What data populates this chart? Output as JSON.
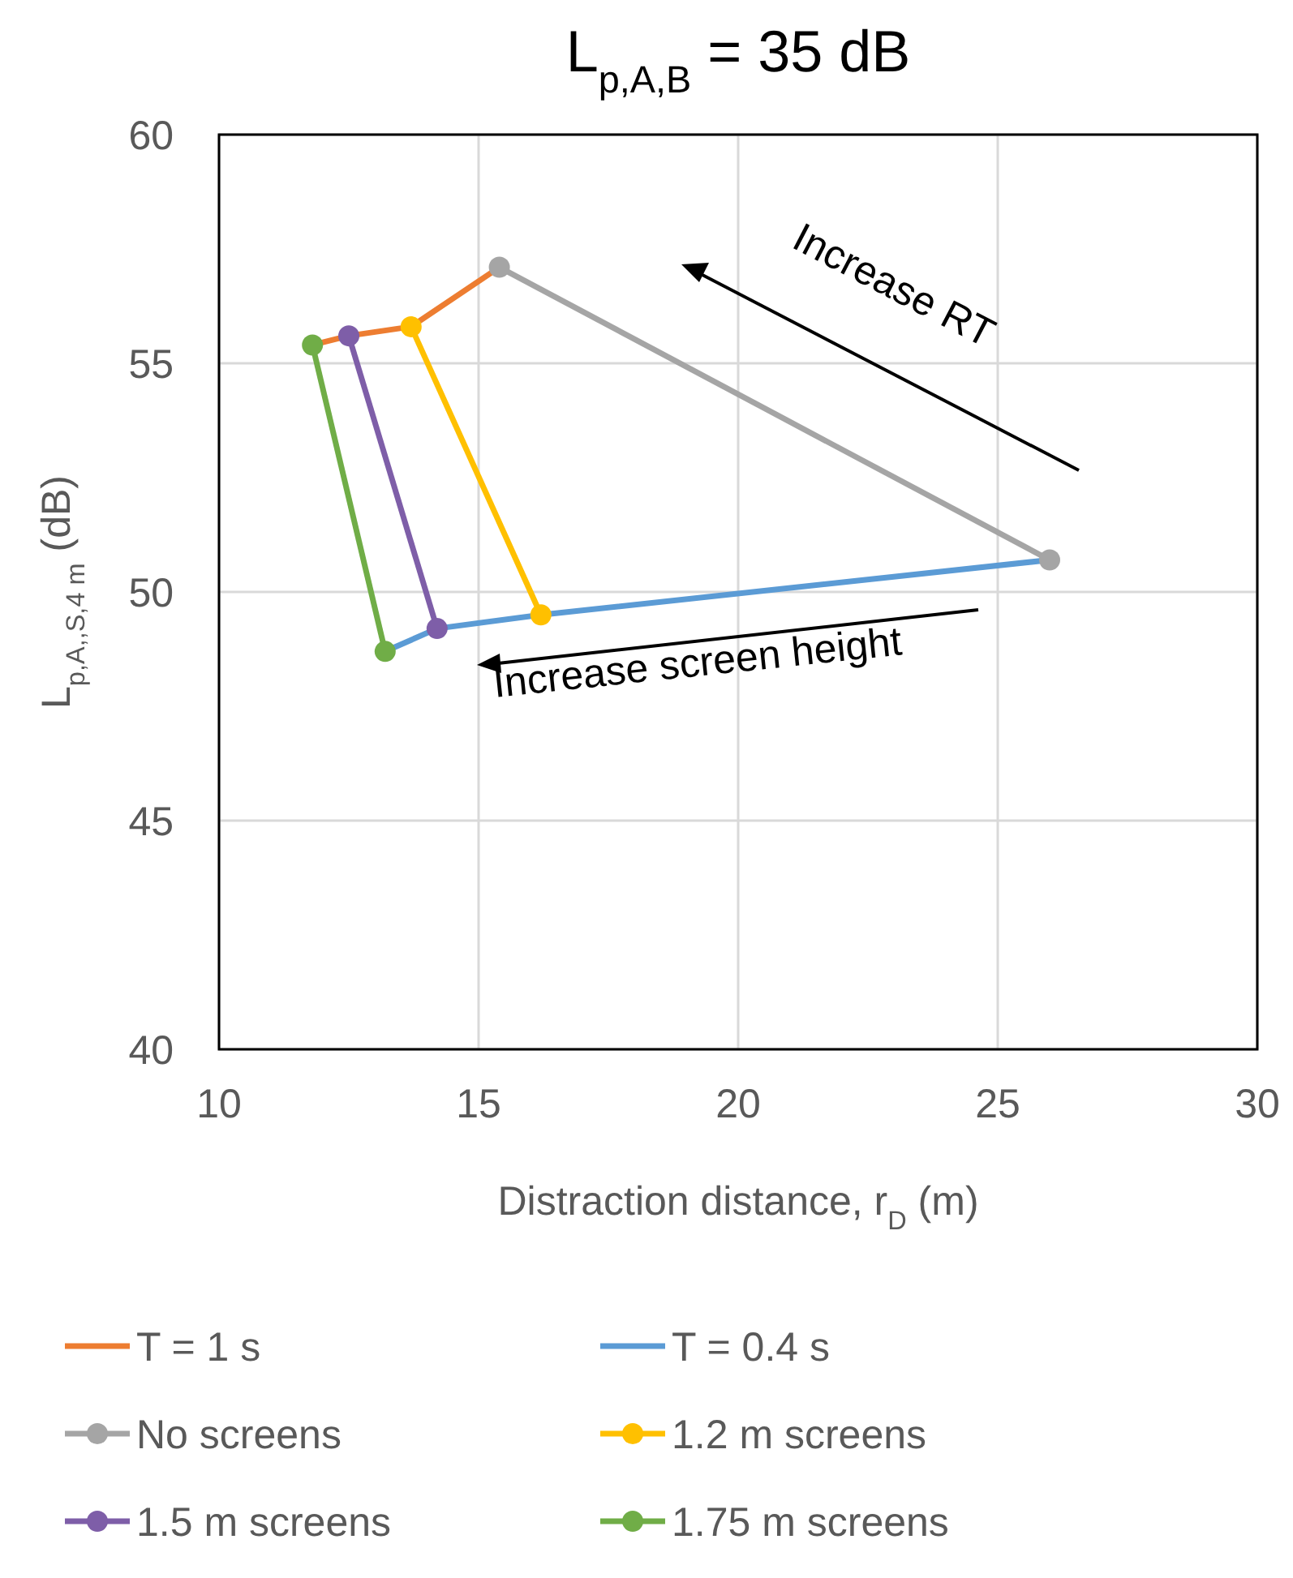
{
  "chart_data": {
    "type": "line",
    "title": "L$_{p,A,B}$ = 35 dB",
    "xlabel": "Distraction distance, r$_{D}$ (m)",
    "ylabel": "L$_{p,A,,S,4 m}$ (dB)",
    "xlim": [
      10,
      30
    ],
    "xticks": [
      10,
      15,
      20,
      25,
      30
    ],
    "ylim": [
      40,
      60
    ],
    "yticks": [
      40,
      45,
      50,
      55,
      60
    ],
    "grid": true,
    "legend": "bottom",
    "annotations": [
      "Increase RT",
      "Increase screen height"
    ],
    "series": [
      {
        "name": "T = 1 s",
        "color": "#ed7d31",
        "marker": "none",
        "x": [
          11.8,
          12.5,
          13.7,
          15.4
        ],
        "values": [
          55.4,
          55.6,
          55.8,
          57.1
        ]
      },
      {
        "name": "T = 0.4 s",
        "color": "#5b9bd5",
        "marker": "none",
        "x": [
          13.2,
          14.2,
          16.2,
          26.0
        ],
        "values": [
          48.7,
          49.2,
          49.5,
          50.7
        ]
      },
      {
        "name": "No screens",
        "color": "#a5a5a5",
        "marker": "circle",
        "x": [
          15.4,
          26.0
        ],
        "values": [
          57.1,
          50.7
        ]
      },
      {
        "name": "1.2 m screens",
        "color": "#ffc000",
        "marker": "circle",
        "x": [
          13.7,
          16.2
        ],
        "values": [
          55.8,
          49.5
        ]
      },
      {
        "name": "1.5 m screens",
        "color": "#7e5ea8",
        "marker": "circle",
        "x": [
          12.5,
          14.2
        ],
        "values": [
          55.6,
          49.2
        ]
      },
      {
        "name": "1.75 m screens",
        "color": "#70ad47",
        "marker": "circle",
        "x": [
          11.8,
          13.2
        ],
        "values": [
          55.4,
          48.7
        ]
      }
    ]
  }
}
